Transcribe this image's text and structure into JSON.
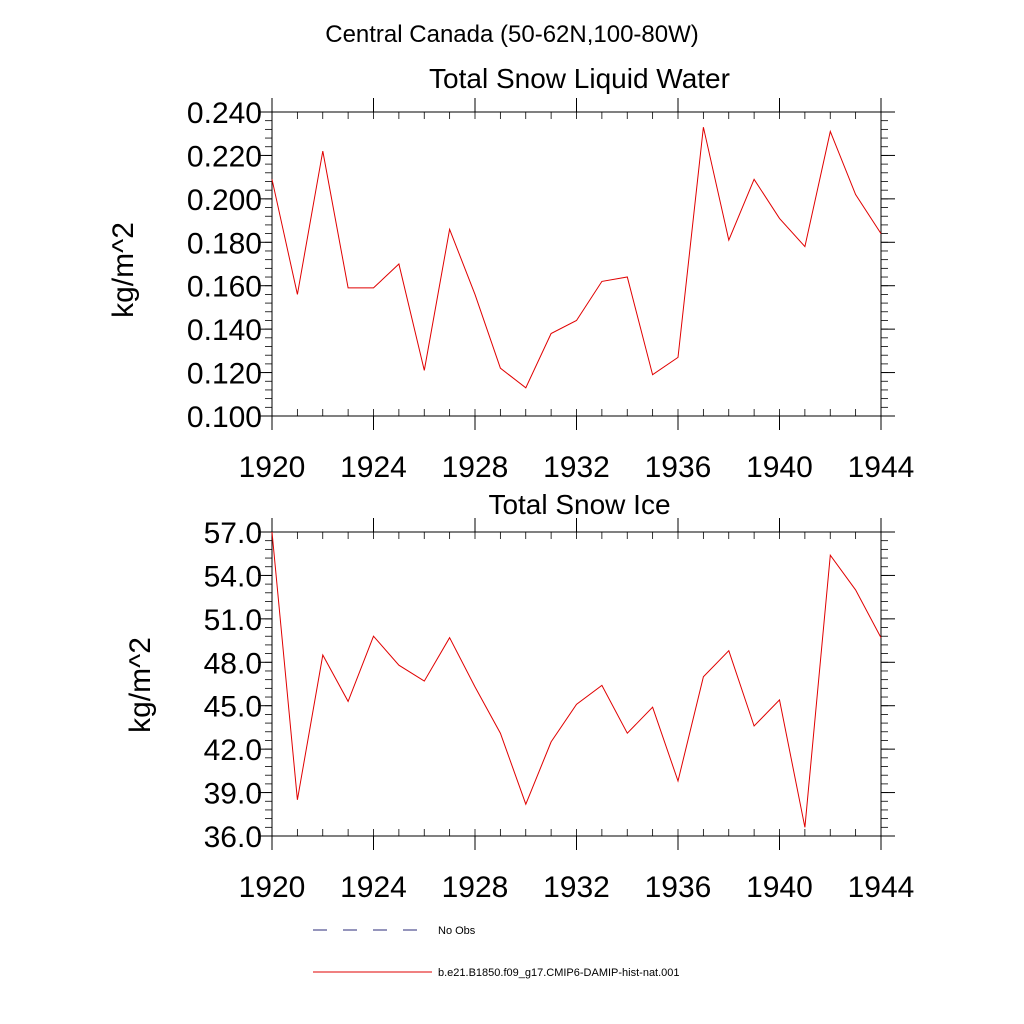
{
  "figure": {
    "suptitle": "Central Canada (50-62N,100-80W)",
    "legend": [
      {
        "label": "No Obs",
        "color": "#2b2b7a",
        "style": "dashed"
      },
      {
        "label": "b.e21.B1850.f09_g17.CMIP6-DAMIP-hist-nat.001",
        "color": "#e00000",
        "style": "solid"
      }
    ]
  },
  "chart_data": [
    {
      "type": "line",
      "title": "Total Snow Liquid Water",
      "xlabel": "",
      "ylabel": "kg/m^2",
      "xlim": [
        1920,
        1944
      ],
      "ylim": [
        0.1,
        0.24
      ],
      "x_ticks": [
        "1920",
        "1924",
        "1928",
        "1932",
        "1936",
        "1940",
        "1944"
      ],
      "y_ticks": [
        "0.100",
        "0.120",
        "0.140",
        "0.160",
        "0.180",
        "0.200",
        "0.220",
        "0.240"
      ],
      "grid": false,
      "series": [
        {
          "name": "b.e21.B1850.f09_g17.CMIP6-DAMIP-hist-nat.001",
          "color": "#e00000",
          "x": [
            1920,
            1921,
            1922,
            1923,
            1924,
            1925,
            1926,
            1927,
            1928,
            1929,
            1930,
            1931,
            1932,
            1933,
            1934,
            1935,
            1936,
            1937,
            1938,
            1939,
            1940,
            1941,
            1942,
            1943,
            1944
          ],
          "values": [
            0.209,
            0.156,
            0.222,
            0.159,
            0.159,
            0.17,
            0.121,
            0.186,
            0.156,
            0.122,
            0.113,
            0.138,
            0.144,
            0.162,
            0.164,
            0.119,
            0.127,
            0.233,
            0.181,
            0.209,
            0.191,
            0.178,
            0.231,
            0.202,
            0.184
          ]
        }
      ]
    },
    {
      "type": "line",
      "title": "Total Snow Ice",
      "xlabel": "",
      "ylabel": "kg/m^2",
      "xlim": [
        1920,
        1944
      ],
      "ylim": [
        36.0,
        57.0
      ],
      "x_ticks": [
        "1920",
        "1924",
        "1928",
        "1932",
        "1936",
        "1940",
        "1944"
      ],
      "y_ticks": [
        "36.0",
        "39.0",
        "42.0",
        "45.0",
        "48.0",
        "51.0",
        "54.0",
        "57.0"
      ],
      "grid": false,
      "series": [
        {
          "name": "b.e21.B1850.f09_g17.CMIP6-DAMIP-hist-nat.001",
          "color": "#e00000",
          "x": [
            1920,
            1921,
            1922,
            1923,
            1924,
            1925,
            1926,
            1927,
            1928,
            1929,
            1930,
            1931,
            1932,
            1933,
            1934,
            1935,
            1936,
            1937,
            1938,
            1939,
            1940,
            1941,
            1942,
            1943,
            1944
          ],
          "values": [
            57.0,
            38.5,
            48.5,
            45.3,
            49.8,
            47.8,
            46.7,
            49.7,
            46.3,
            43.1,
            38.2,
            42.5,
            45.1,
            46.4,
            43.1,
            44.9,
            39.8,
            47.0,
            48.8,
            43.6,
            45.4,
            36.6,
            55.4,
            53.0,
            49.7
          ]
        }
      ]
    }
  ]
}
